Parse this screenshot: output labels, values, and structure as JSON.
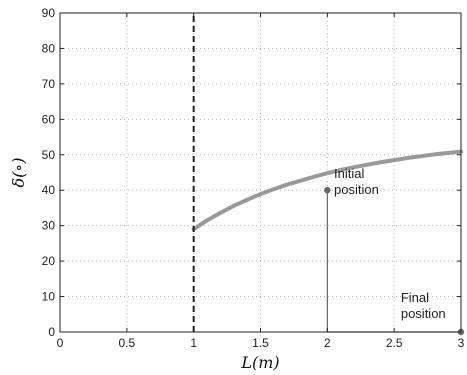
{
  "chart_data": {
    "type": "line",
    "xlabel": "L(m)",
    "ylabel": "δ(∘)",
    "xlim": [
      0,
      3
    ],
    "ylim": [
      0,
      90
    ],
    "x_ticks": [
      "0",
      "0.5",
      "1",
      "1.5",
      "2",
      "2.5",
      "3"
    ],
    "y_ticks": [
      "0",
      "10",
      "20",
      "30",
      "40",
      "50",
      "60",
      "70",
      "80",
      "90"
    ],
    "grid": true,
    "series": [
      {
        "type": "curve",
        "color": "#999999",
        "x": [
          1.0,
          1.1,
          1.2,
          1.3,
          1.4,
          1.5,
          1.6,
          1.7,
          1.8,
          1.9,
          2.0,
          2.1,
          2.2,
          2.3,
          2.4,
          2.5,
          2.6,
          2.7,
          2.8,
          2.9,
          3.0
        ],
        "y": [
          29.0,
          31.5,
          33.6,
          35.6,
          37.3,
          38.9,
          40.3,
          41.6,
          42.7,
          43.8,
          44.8,
          45.7,
          46.5,
          47.2,
          47.9,
          48.5,
          49.1,
          49.6,
          50.1,
          50.5,
          50.9
        ]
      },
      {
        "type": "dashed-vertical",
        "color": "#222222",
        "x": [
          1,
          1
        ],
        "y": [
          0,
          90
        ]
      },
      {
        "type": "trajectory",
        "color": "#666666",
        "x": [
          2,
          2,
          3
        ],
        "y": [
          40,
          0,
          0
        ]
      }
    ],
    "markers": [
      {
        "x": 2,
        "y": 40
      },
      {
        "x": 3,
        "y": 0
      }
    ],
    "annotations": [
      {
        "lines": [
          "Initial",
          "position"
        ],
        "x": 2.05,
        "y": 43.5
      },
      {
        "lines": [
          "Final",
          "position"
        ],
        "x": 2.55,
        "y": 8.5
      }
    ]
  }
}
